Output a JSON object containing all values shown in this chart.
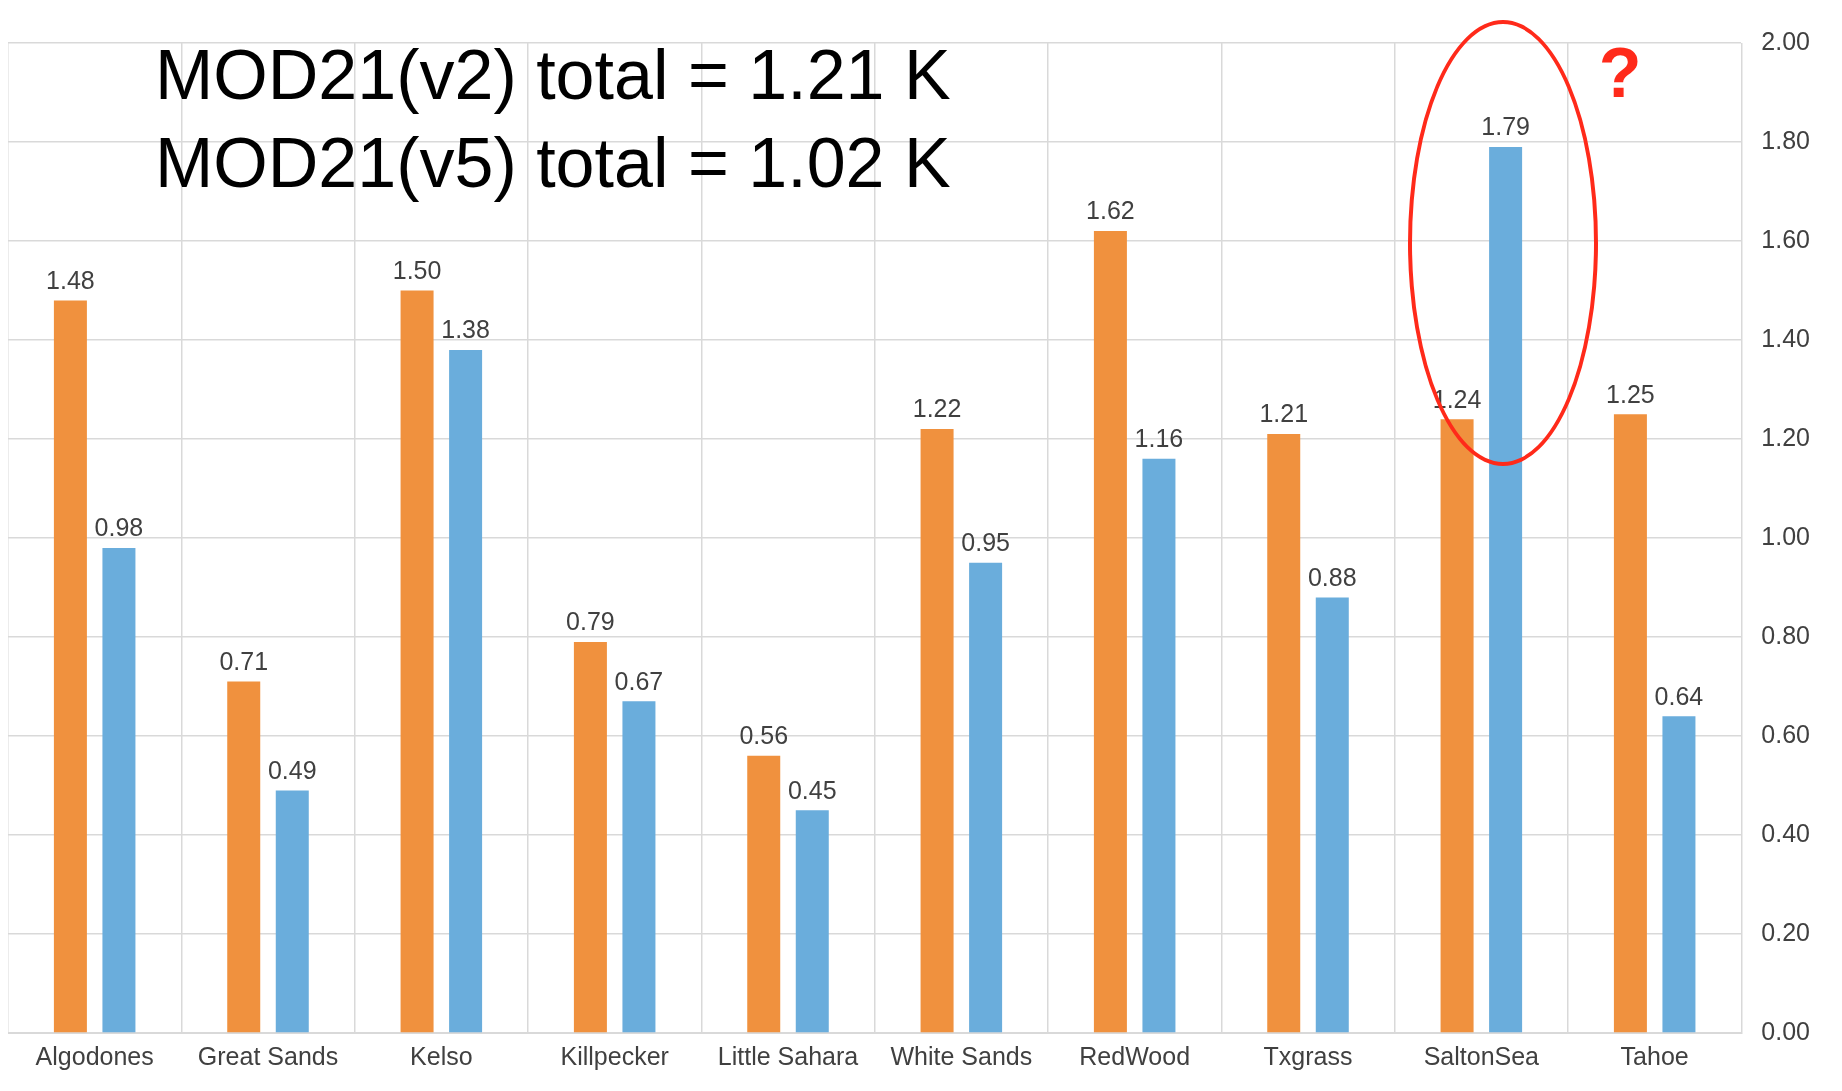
{
  "chart_data": {
    "type": "bar",
    "categories": [
      "Algodones",
      "Great Sands",
      "Kelso",
      "Killpecker",
      "Little Sahara",
      "White Sands",
      "RedWood",
      "Txgrass",
      "SaltonSea",
      "Tahoe"
    ],
    "series": [
      {
        "color": "#f0913e",
        "values": [
          1.48,
          0.71,
          1.5,
          0.79,
          0.56,
          1.22,
          1.62,
          1.21,
          1.24,
          1.25
        ],
        "value_labels": [
          "1.48",
          "0.71",
          "1.50",
          "0.79",
          "0.56",
          "1.22",
          "1.62",
          "1.21",
          "1.24",
          "1.25"
        ]
      },
      {
        "color": "#6aaddc",
        "values": [
          0.98,
          0.49,
          1.38,
          0.67,
          0.45,
          0.95,
          1.16,
          0.88,
          1.79,
          0.64
        ],
        "value_labels": [
          "0.98",
          "0.49",
          "1.38",
          "0.67",
          "0.45",
          "0.95",
          "1.16",
          "0.88",
          "1.79",
          "0.64"
        ]
      }
    ],
    "ylim": [
      0,
      2
    ],
    "yticks": [
      {
        "value": 0,
        "label": "0.00"
      },
      {
        "value": 0.2,
        "label": "0.20"
      },
      {
        "value": 0.4,
        "label": "0.40"
      },
      {
        "value": 0.6,
        "label": "0.60"
      },
      {
        "value": 0.8,
        "label": "0.80"
      },
      {
        "value": 1,
        "label": "1.00"
      },
      {
        "value": 1.2,
        "label": "1.20"
      },
      {
        "value": 1.4,
        "label": "1.40"
      },
      {
        "value": 1.6,
        "label": "1.60"
      },
      {
        "value": 1.8,
        "label": "1.80"
      },
      {
        "value": 2,
        "label": "2.00"
      }
    ],
    "grid": true,
    "legend": false,
    "annotations": [
      "MOD21(v2) total = 1.21 K",
      "MOD21(v5) total = 1.02 K",
      "?"
    ]
  }
}
